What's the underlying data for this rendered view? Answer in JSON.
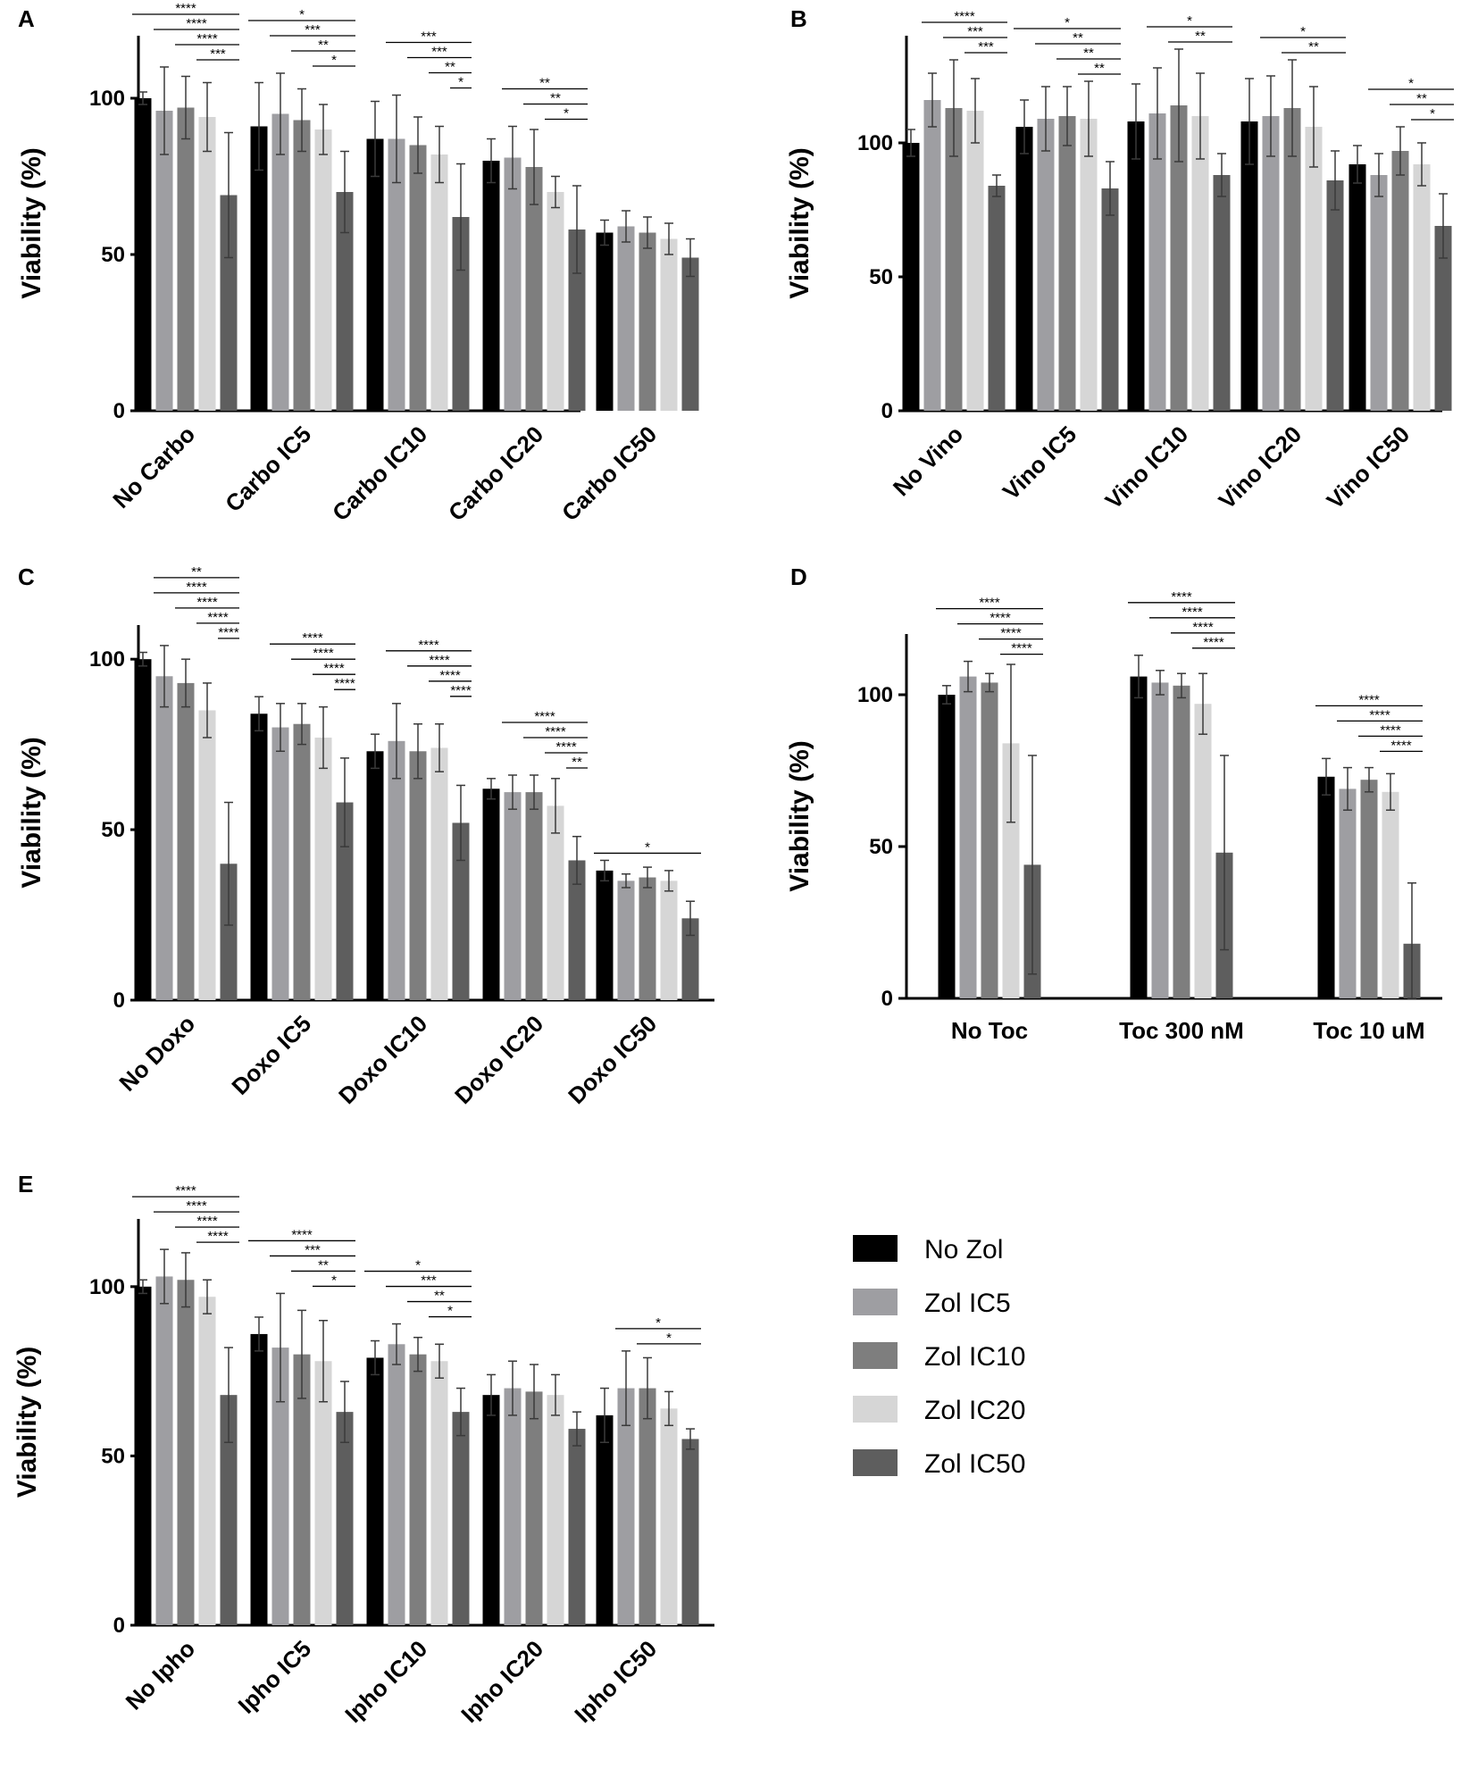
{
  "legend": {
    "items": [
      {
        "label": "No Zol",
        "color": "#000000"
      },
      {
        "label": "Zol IC5",
        "color": "#9e9ea2"
      },
      {
        "label": "Zol IC10",
        "color": "#7e7e7e"
      },
      {
        "label": "Zol IC20",
        "color": "#d6d6d6"
      },
      {
        "label": "Zol IC50",
        "color": "#5e5e5e"
      }
    ]
  },
  "chart_data": [
    {
      "panel": "A",
      "type": "bar",
      "ylabel": "Viability (%)",
      "ylim": [
        0,
        120
      ],
      "yticks": [
        0,
        50,
        100
      ],
      "categories": [
        "No Carbo",
        "Carbo IC5",
        "Carbo IC10",
        "Carbo IC20",
        "Carbo IC50"
      ],
      "series": [
        {
          "name": "No Zol",
          "values": [
            100,
            91,
            87,
            80,
            57
          ],
          "errors": [
            2,
            14,
            12,
            7,
            4
          ]
        },
        {
          "name": "Zol IC5",
          "values": [
            96,
            95,
            87,
            81,
            59
          ],
          "errors": [
            14,
            13,
            14,
            10,
            5
          ]
        },
        {
          "name": "Zol IC10",
          "values": [
            97,
            93,
            85,
            78,
            57
          ],
          "errors": [
            10,
            10,
            9,
            12,
            5
          ]
        },
        {
          "name": "Zol IC20",
          "values": [
            94,
            90,
            82,
            70,
            55
          ],
          "errors": [
            11,
            8,
            9,
            5,
            5
          ]
        },
        {
          "name": "Zol IC50",
          "values": [
            69,
            70,
            62,
            58,
            49
          ],
          "errors": [
            20,
            13,
            17,
            14,
            6
          ]
        }
      ],
      "significance": [
        {
          "group": 0,
          "from": 0,
          "to": 4,
          "label": "****"
        },
        {
          "group": 0,
          "from": 1,
          "to": 4,
          "label": "****"
        },
        {
          "group": 0,
          "from": 2,
          "to": 4,
          "label": "****"
        },
        {
          "group": 0,
          "from": 3,
          "to": 4,
          "label": "***"
        },
        {
          "group": 1,
          "from": 0,
          "to": 4,
          "label": "*"
        },
        {
          "group": 1,
          "from": 1,
          "to": 4,
          "label": "***"
        },
        {
          "group": 1,
          "from": 2,
          "to": 4,
          "label": "**"
        },
        {
          "group": 1,
          "from": 3,
          "to": 4,
          "label": "*"
        },
        {
          "group": 2,
          "from": 1,
          "to": 4,
          "label": "***"
        },
        {
          "group": 2,
          "from": 2,
          "to": 4,
          "label": "***"
        },
        {
          "group": 2,
          "from": 3,
          "to": 4,
          "label": "**"
        },
        {
          "group": 2,
          "from": 4,
          "to": 4,
          "label": "*"
        },
        {
          "group": 3,
          "from": 1,
          "to": 4,
          "label": "**"
        },
        {
          "group": 3,
          "from": 2,
          "to": 4,
          "label": "**"
        },
        {
          "group": 3,
          "from": 3,
          "to": 4,
          "label": "*"
        }
      ]
    },
    {
      "panel": "B",
      "type": "bar",
      "ylabel": "Viability (%)",
      "ylim": [
        0,
        140
      ],
      "yticks": [
        0,
        50,
        100
      ],
      "categories": [
        "No Vino",
        "Vino IC5",
        "Vino IC10",
        "Vino IC20",
        "Vino IC50"
      ],
      "series": [
        {
          "name": "No Zol",
          "values": [
            100,
            106,
            108,
            108,
            92
          ],
          "errors": [
            5,
            10,
            14,
            16,
            7
          ]
        },
        {
          "name": "Zol IC5",
          "values": [
            116,
            109,
            111,
            110,
            88
          ],
          "errors": [
            10,
            12,
            17,
            15,
            8
          ]
        },
        {
          "name": "Zol IC10",
          "values": [
            113,
            110,
            114,
            113,
            97
          ],
          "errors": [
            18,
            11,
            21,
            18,
            9
          ]
        },
        {
          "name": "Zol IC20",
          "values": [
            112,
            109,
            110,
            106,
            92
          ],
          "errors": [
            12,
            14,
            16,
            15,
            8
          ]
        },
        {
          "name": "Zol IC50",
          "values": [
            84,
            83,
            88,
            86,
            69
          ],
          "errors": [
            4,
            10,
            8,
            11,
            12
          ]
        }
      ],
      "significance": [
        {
          "group": 0,
          "from": 1,
          "to": 4,
          "label": "****"
        },
        {
          "group": 0,
          "from": 2,
          "to": 4,
          "label": "***"
        },
        {
          "group": 0,
          "from": 3,
          "to": 4,
          "label": "***"
        },
        {
          "group": 1,
          "from": 0,
          "to": 4,
          "label": "*"
        },
        {
          "group": 1,
          "from": 1,
          "to": 4,
          "label": "**"
        },
        {
          "group": 1,
          "from": 2,
          "to": 4,
          "label": "**"
        },
        {
          "group": 1,
          "from": 3,
          "to": 4,
          "label": "**"
        },
        {
          "group": 2,
          "from": 1,
          "to": 4,
          "label": "*"
        },
        {
          "group": 2,
          "from": 2,
          "to": 4,
          "label": "**"
        },
        {
          "group": 3,
          "from": 1,
          "to": 4,
          "label": "*"
        },
        {
          "group": 3,
          "from": 2,
          "to": 4,
          "label": "**"
        },
        {
          "group": 4,
          "from": 1,
          "to": 4,
          "label": "*"
        },
        {
          "group": 4,
          "from": 2,
          "to": 4,
          "label": "**"
        },
        {
          "group": 4,
          "from": 3,
          "to": 4,
          "label": "*"
        }
      ]
    },
    {
      "panel": "C",
      "type": "bar",
      "ylabel": "Viability (%)",
      "ylim": [
        0,
        110
      ],
      "yticks": [
        0,
        50,
        100
      ],
      "categories": [
        "No Doxo",
        "Doxo IC5",
        "Doxo IC10",
        "Doxo IC20",
        "Doxo IC50"
      ],
      "series": [
        {
          "name": "No Zol",
          "values": [
            100,
            84,
            73,
            62,
            38
          ],
          "errors": [
            2,
            5,
            5,
            3,
            3
          ]
        },
        {
          "name": "Zol IC5",
          "values": [
            95,
            80,
            76,
            61,
            35
          ],
          "errors": [
            9,
            7,
            11,
            5,
            2
          ]
        },
        {
          "name": "Zol IC10",
          "values": [
            93,
            81,
            73,
            61,
            36
          ],
          "errors": [
            7,
            6,
            8,
            5,
            3
          ]
        },
        {
          "name": "Zol IC20",
          "values": [
            85,
            77,
            74,
            57,
            35
          ],
          "errors": [
            8,
            9,
            7,
            8,
            3
          ]
        },
        {
          "name": "Zol IC50",
          "values": [
            40,
            58,
            52,
            41,
            24
          ],
          "errors": [
            18,
            13,
            11,
            7,
            5
          ]
        }
      ],
      "significance": [
        {
          "group": 0,
          "from": 1,
          "to": 4,
          "label": "**"
        },
        {
          "group": 0,
          "from": 1,
          "to": 4,
          "label": "****"
        },
        {
          "group": 0,
          "from": 2,
          "to": 4,
          "label": "****"
        },
        {
          "group": 0,
          "from": 3,
          "to": 4,
          "label": "****"
        },
        {
          "group": 0,
          "from": 4,
          "to": 4,
          "label": "****"
        },
        {
          "group": 1,
          "from": 1,
          "to": 4,
          "label": "****"
        },
        {
          "group": 1,
          "from": 2,
          "to": 4,
          "label": "****"
        },
        {
          "group": 1,
          "from": 3,
          "to": 4,
          "label": "****"
        },
        {
          "group": 1,
          "from": 4,
          "to": 4,
          "label": "****"
        },
        {
          "group": 2,
          "from": 1,
          "to": 4,
          "label": "****"
        },
        {
          "group": 2,
          "from": 2,
          "to": 4,
          "label": "****"
        },
        {
          "group": 2,
          "from": 3,
          "to": 4,
          "label": "****"
        },
        {
          "group": 2,
          "from": 4,
          "to": 4,
          "label": "****"
        },
        {
          "group": 3,
          "from": 1,
          "to": 4,
          "label": "****"
        },
        {
          "group": 3,
          "from": 2,
          "to": 4,
          "label": "****"
        },
        {
          "group": 3,
          "from": 3,
          "to": 4,
          "label": "****"
        },
        {
          "group": 3,
          "from": 4,
          "to": 4,
          "label": "**"
        },
        {
          "group": 4,
          "from": 0,
          "to": 4,
          "label": "*"
        }
      ]
    },
    {
      "panel": "D",
      "type": "bar",
      "ylabel": "Viability (%)",
      "ylim": [
        0,
        120
      ],
      "yticks": [
        0,
        50,
        100
      ],
      "categories": [
        "No Toc",
        "Toc 300 nM",
        "Toc 10 uM"
      ],
      "series": [
        {
          "name": "No Zol",
          "values": [
            100,
            106,
            73
          ],
          "errors": [
            3,
            7,
            6
          ]
        },
        {
          "name": "Zol IC5",
          "values": [
            106,
            104,
            69
          ],
          "errors": [
            5,
            4,
            7
          ]
        },
        {
          "name": "Zol IC10",
          "values": [
            104,
            103,
            72
          ],
          "errors": [
            3,
            4,
            4
          ]
        },
        {
          "name": "Zol IC20",
          "values": [
            84,
            97,
            68
          ],
          "errors": [
            26,
            10,
            6
          ]
        },
        {
          "name": "Zol IC50",
          "values": [
            44,
            48,
            18
          ],
          "errors": [
            36,
            32,
            20
          ]
        }
      ],
      "significance": [
        {
          "group": 0,
          "from": 0,
          "to": 4,
          "label": "****"
        },
        {
          "group": 0,
          "from": 1,
          "to": 4,
          "label": "****"
        },
        {
          "group": 0,
          "from": 2,
          "to": 4,
          "label": "****"
        },
        {
          "group": 0,
          "from": 3,
          "to": 4,
          "label": "****"
        },
        {
          "group": 1,
          "from": 0,
          "to": 4,
          "label": "****"
        },
        {
          "group": 1,
          "from": 1,
          "to": 4,
          "label": "****"
        },
        {
          "group": 1,
          "from": 2,
          "to": 4,
          "label": "****"
        },
        {
          "group": 1,
          "from": 3,
          "to": 4,
          "label": "****"
        },
        {
          "group": 2,
          "from": 0,
          "to": 4,
          "label": "****"
        },
        {
          "group": 2,
          "from": 1,
          "to": 4,
          "label": "****"
        },
        {
          "group": 2,
          "from": 2,
          "to": 4,
          "label": "****"
        },
        {
          "group": 2,
          "from": 3,
          "to": 4,
          "label": "****"
        }
      ]
    },
    {
      "panel": "E",
      "type": "bar",
      "ylabel": "Viability (%)",
      "ylim": [
        0,
        120
      ],
      "yticks": [
        0,
        50,
        100
      ],
      "categories": [
        "No Ipho",
        "Ipho IC5",
        "Ipho IC10",
        "Ipho IC20",
        "Ipho IC50"
      ],
      "series": [
        {
          "name": "No Zol",
          "values": [
            100,
            86,
            79,
            68,
            62
          ],
          "errors": [
            2,
            5,
            5,
            6,
            8
          ]
        },
        {
          "name": "Zol IC5",
          "values": [
            103,
            82,
            83,
            70,
            70
          ],
          "errors": [
            8,
            16,
            6,
            8,
            11
          ]
        },
        {
          "name": "Zol IC10",
          "values": [
            102,
            80,
            80,
            69,
            70
          ],
          "errors": [
            8,
            13,
            5,
            8,
            9
          ]
        },
        {
          "name": "Zol IC20",
          "values": [
            97,
            78,
            78,
            68,
            64
          ],
          "errors": [
            5,
            12,
            5,
            6,
            5
          ]
        },
        {
          "name": "Zol IC50",
          "values": [
            68,
            63,
            63,
            58,
            55
          ],
          "errors": [
            14,
            9,
            7,
            5,
            3
          ]
        }
      ],
      "significance": [
        {
          "group": 0,
          "from": 0,
          "to": 4,
          "label": "****"
        },
        {
          "group": 0,
          "from": 1,
          "to": 4,
          "label": "****"
        },
        {
          "group": 0,
          "from": 2,
          "to": 4,
          "label": "****"
        },
        {
          "group": 0,
          "from": 3,
          "to": 4,
          "label": "****"
        },
        {
          "group": 1,
          "from": 0,
          "to": 4,
          "label": "****"
        },
        {
          "group": 1,
          "from": 1,
          "to": 4,
          "label": "***"
        },
        {
          "group": 1,
          "from": 2,
          "to": 4,
          "label": "**"
        },
        {
          "group": 1,
          "from": 3,
          "to": 4,
          "label": "*"
        },
        {
          "group": 2,
          "from": 0,
          "to": 4,
          "label": "*"
        },
        {
          "group": 2,
          "from": 1,
          "to": 4,
          "label": "***"
        },
        {
          "group": 2,
          "from": 2,
          "to": 4,
          "label": "**"
        },
        {
          "group": 2,
          "from": 3,
          "to": 4,
          "label": "*"
        },
        {
          "group": 4,
          "from": 1,
          "to": 4,
          "label": "*"
        },
        {
          "group": 4,
          "from": 2,
          "to": 4,
          "label": "*"
        }
      ]
    }
  ]
}
